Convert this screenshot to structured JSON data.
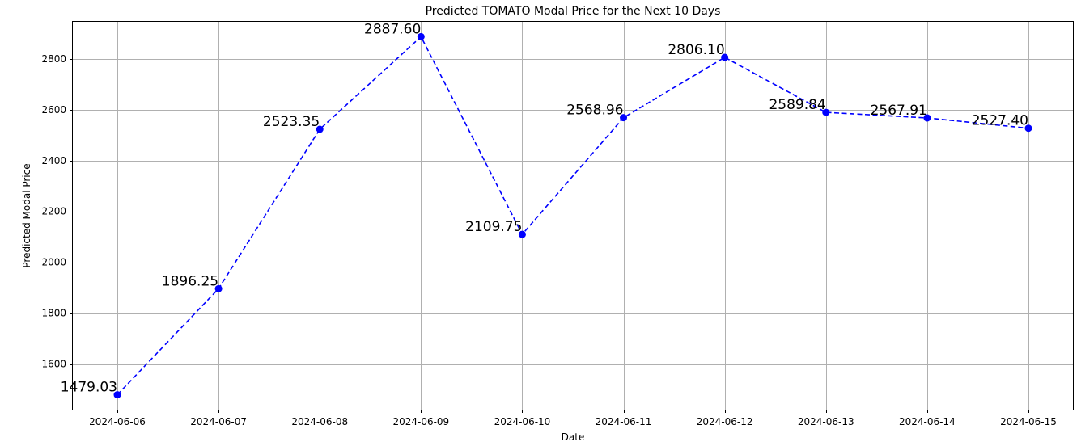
{
  "chart_data": {
    "type": "line",
    "title": "Predicted TOMATO Modal Price for the Next 10 Days",
    "xlabel": "Date",
    "ylabel": "Predicted Modal Price",
    "x": [
      "2024-06-06",
      "2024-06-07",
      "2024-06-08",
      "2024-06-09",
      "2024-06-10",
      "2024-06-11",
      "2024-06-12",
      "2024-06-13",
      "2024-06-14",
      "2024-06-15"
    ],
    "series": [
      {
        "values": [
          1479.03,
          1896.25,
          2523.35,
          2887.6,
          2109.75,
          2568.96,
          2806.1,
          2589.84,
          2567.91,
          2527.4
        ],
        "data_labels": [
          "1479.03",
          "1896.25",
          "2523.35",
          "2887.60",
          "2109.75",
          "2568.96",
          "2806.10",
          "2589.84",
          "2567.91",
          "2527.40"
        ],
        "color": "#0000ff",
        "line_style": "dashed",
        "marker": "circle"
      }
    ],
    "yticks": [
      1600,
      1800,
      2000,
      2200,
      2400,
      2600,
      2800
    ],
    "ylim": [
      1420.6,
      2946.0
    ],
    "grid": true,
    "legend": "none"
  }
}
